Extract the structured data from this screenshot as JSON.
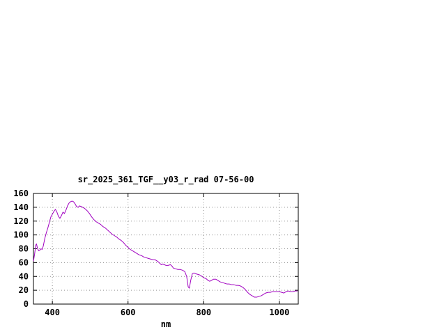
{
  "page": {
    "background": "#ffffff"
  },
  "chart_data": {
    "type": "line",
    "title": "sr_2025_361_TGF__y03_r_rad 07-56-00",
    "xlabel": "nm",
    "ylabel": "",
    "xlim": [
      350,
      1050
    ],
    "ylim": [
      0,
      160
    ],
    "xticks": [
      400,
      600,
      800,
      1000
    ],
    "yticks": [
      0,
      20,
      40,
      60,
      80,
      100,
      120,
      140,
      160
    ],
    "grid": true,
    "legend_position": "none",
    "axis_color": "#000000",
    "grid_color": "#909090",
    "series": [
      {
        "name": "sr_2025_361_TGF__y03_r_rad",
        "color": "#a000c0",
        "points": [
          [
            350,
            62
          ],
          [
            353,
            72
          ],
          [
            356,
            85
          ],
          [
            358,
            87
          ],
          [
            361,
            80
          ],
          [
            364,
            77
          ],
          [
            367,
            78
          ],
          [
            370,
            80
          ],
          [
            373,
            79
          ],
          [
            376,
            84
          ],
          [
            380,
            95
          ],
          [
            384,
            103
          ],
          [
            388,
            110
          ],
          [
            392,
            118
          ],
          [
            396,
            126
          ],
          [
            400,
            130
          ],
          [
            404,
            134
          ],
          [
            408,
            137
          ],
          [
            412,
            133
          ],
          [
            416,
            127
          ],
          [
            420,
            124
          ],
          [
            424,
            128
          ],
          [
            428,
            133
          ],
          [
            432,
            131
          ],
          [
            436,
            136
          ],
          [
            440,
            142
          ],
          [
            444,
            146
          ],
          [
            448,
            148
          ],
          [
            452,
            149
          ],
          [
            456,
            148
          ],
          [
            460,
            145
          ],
          [
            464,
            141
          ],
          [
            468,
            140
          ],
          [
            472,
            142
          ],
          [
            476,
            141
          ],
          [
            480,
            140
          ],
          [
            486,
            138
          ],
          [
            492,
            135
          ],
          [
            498,
            131
          ],
          [
            504,
            126
          ],
          [
            510,
            122
          ],
          [
            516,
            119
          ],
          [
            522,
            117
          ],
          [
            528,
            115
          ],
          [
            534,
            112
          ],
          [
            540,
            110
          ],
          [
            546,
            107
          ],
          [
            552,
            104
          ],
          [
            558,
            101
          ],
          [
            564,
            99
          ],
          [
            570,
            97
          ],
          [
            576,
            94
          ],
          [
            582,
            92
          ],
          [
            588,
            89
          ],
          [
            594,
            85
          ],
          [
            600,
            82
          ],
          [
            606,
            79
          ],
          [
            612,
            77
          ],
          [
            618,
            75
          ],
          [
            624,
            73
          ],
          [
            630,
            71
          ],
          [
            636,
            70
          ],
          [
            642,
            68
          ],
          [
            648,
            67
          ],
          [
            654,
            66
          ],
          [
            660,
            65
          ],
          [
            666,
            64
          ],
          [
            672,
            64
          ],
          [
            678,
            62
          ],
          [
            684,
            59
          ],
          [
            688,
            57
          ],
          [
            692,
            58
          ],
          [
            696,
            57
          ],
          [
            700,
            56
          ],
          [
            706,
            56
          ],
          [
            712,
            57
          ],
          [
            716,
            55
          ],
          [
            720,
            52
          ],
          [
            726,
            51
          ],
          [
            732,
            50
          ],
          [
            738,
            50
          ],
          [
            744,
            49
          ],
          [
            750,
            47
          ],
          [
            755,
            40
          ],
          [
            759,
            25
          ],
          [
            762,
            23
          ],
          [
            766,
            35
          ],
          [
            770,
            44
          ],
          [
            774,
            45
          ],
          [
            778,
            44
          ],
          [
            784,
            43
          ],
          [
            790,
            42
          ],
          [
            796,
            40
          ],
          [
            800,
            38
          ],
          [
            806,
            37
          ],
          [
            812,
            34
          ],
          [
            816,
            33
          ],
          [
            820,
            34
          ],
          [
            826,
            36
          ],
          [
            832,
            36
          ],
          [
            838,
            34
          ],
          [
            844,
            32
          ],
          [
            850,
            31
          ],
          [
            856,
            30
          ],
          [
            862,
            29
          ],
          [
            868,
            29
          ],
          [
            874,
            28
          ],
          [
            880,
            28
          ],
          [
            886,
            27
          ],
          [
            892,
            27
          ],
          [
            898,
            26
          ],
          [
            904,
            24
          ],
          [
            910,
            21
          ],
          [
            916,
            17
          ],
          [
            922,
            14
          ],
          [
            928,
            12
          ],
          [
            934,
            10
          ],
          [
            940,
            10
          ],
          [
            946,
            11
          ],
          [
            952,
            12
          ],
          [
            958,
            14
          ],
          [
            964,
            16
          ],
          [
            970,
            17
          ],
          [
            976,
            17
          ],
          [
            982,
            18
          ],
          [
            988,
            18
          ],
          [
            994,
            18
          ],
          [
            1000,
            18
          ],
          [
            1006,
            17
          ],
          [
            1012,
            16
          ],
          [
            1018,
            18
          ],
          [
            1024,
            19
          ],
          [
            1030,
            18
          ],
          [
            1036,
            18
          ],
          [
            1042,
            19
          ],
          [
            1048,
            19
          ]
        ]
      }
    ]
  }
}
